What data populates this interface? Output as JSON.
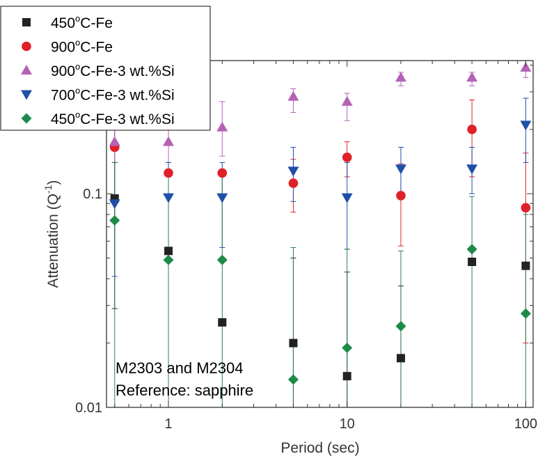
{
  "chart_data": {
    "type": "scatter",
    "xlabel": "Period (sec)",
    "ylabel_main": "Attenuation (Q",
    "ylabel_sup": "-1",
    "ylabel_end": ")",
    "xscale": "log",
    "yscale": "log",
    "xlim": [
      0.45,
      110
    ],
    "ylim": [
      0.01,
      0.42
    ],
    "x_ticks": [
      {
        "value": 1,
        "label": "1"
      },
      {
        "value": 10,
        "label": "10"
      },
      {
        "value": 100,
        "label": "100"
      }
    ],
    "y_ticks": [
      {
        "value": 0.01,
        "label": "0.01"
      },
      {
        "value": 0.1,
        "label": "0.1"
      }
    ],
    "legend_position": "top-left",
    "annotation_lines": [
      "M2303 and M2304",
      "Reference: sapphire"
    ],
    "series": [
      {
        "name_pre": "450",
        "name_sup": "o",
        "name_post": "C-Fe",
        "marker": "square",
        "color": "#222222",
        "error_color": "#222222",
        "points": [
          {
            "x": 0.5,
            "y": 0.095,
            "lo": 0.029,
            "hi": 0.21
          },
          {
            "x": 1,
            "y": 0.054
          },
          {
            "x": 2,
            "y": 0.025
          },
          {
            "x": 5,
            "y": 0.02,
            "lo": 0.01,
            "hi": 0.05
          },
          {
            "x": 10,
            "y": 0.014,
            "lo": 0.01,
            "hi": 0.043
          },
          {
            "x": 20,
            "y": 0.017,
            "lo": 0.01,
            "hi": 0.037
          },
          {
            "x": 50,
            "y": 0.048
          },
          {
            "x": 100,
            "y": 0.046
          }
        ]
      },
      {
        "name_pre": "900",
        "name_sup": "o",
        "name_post": "C-Fe",
        "marker": "circle",
        "color": "#e02028",
        "error_color": "#e02028",
        "points": [
          {
            "x": 0.5,
            "y": 0.165
          },
          {
            "x": 1,
            "y": 0.125
          },
          {
            "x": 2,
            "y": 0.125
          },
          {
            "x": 5,
            "y": 0.112,
            "lo": 0.082,
            "hi": 0.145
          },
          {
            "x": 10,
            "y": 0.148,
            "lo": 0.12,
            "hi": 0.175
          },
          {
            "x": 20,
            "y": 0.098,
            "lo": 0.057,
            "hi": 0.138
          },
          {
            "x": 50,
            "y": 0.2,
            "lo": 0.12,
            "hi": 0.275
          },
          {
            "x": 100,
            "y": 0.086,
            "lo": 0.02,
            "hi": 0.155
          }
        ]
      },
      {
        "name_pre": "900",
        "name_sup": "o",
        "name_post": "C-Fe-3 wt.%Si",
        "marker": "triangle-up",
        "color": "#b562b5",
        "error_color": "#b562b5",
        "points": [
          {
            "x": 0.5,
            "y": 0.175,
            "lo": 0.14,
            "hi": 0.205
          },
          {
            "x": 1,
            "y": 0.175,
            "lo": 0.14,
            "hi": 0.21
          },
          {
            "x": 2,
            "y": 0.205,
            "lo": 0.15,
            "hi": 0.27
          },
          {
            "x": 5,
            "y": 0.285,
            "lo": 0.24,
            "hi": 0.31
          },
          {
            "x": 10,
            "y": 0.27,
            "lo": 0.22,
            "hi": 0.295
          },
          {
            "x": 20,
            "y": 0.35,
            "lo": 0.32,
            "hi": 0.37
          },
          {
            "x": 50,
            "y": 0.35,
            "lo": 0.32,
            "hi": 0.37
          },
          {
            "x": 100,
            "y": 0.39,
            "lo": 0.35,
            "hi": 0.42
          }
        ]
      },
      {
        "name_pre": "700",
        "name_sup": "o",
        "name_post": "C-Fe-3 wt.%Si",
        "marker": "triangle-down",
        "color": "#1f4fa8",
        "error_color": "#1f4fa8",
        "points": [
          {
            "x": 0.5,
            "y": 0.09,
            "lo": 0.041,
            "hi": 0.14
          },
          {
            "x": 1,
            "y": 0.096,
            "lo": 0.055,
            "hi": 0.14
          },
          {
            "x": 2,
            "y": 0.096,
            "lo": 0.056,
            "hi": 0.14
          },
          {
            "x": 5,
            "y": 0.128,
            "lo": 0.092,
            "hi": 0.165
          },
          {
            "x": 10,
            "y": 0.096,
            "lo": 0.055,
            "hi": 0.14
          },
          {
            "x": 20,
            "y": 0.131,
            "lo": 0.1,
            "hi": 0.165
          },
          {
            "x": 50,
            "y": 0.131,
            "lo": 0.1,
            "hi": 0.165
          },
          {
            "x": 100,
            "y": 0.21,
            "lo": 0.14,
            "hi": 0.28
          }
        ]
      },
      {
        "name_pre": "450",
        "name_sup": "o",
        "name_post": "C-Fe-3 wt.%Si",
        "marker": "diamond",
        "color": "#1e8a4a",
        "error_color": "#2e7d4f",
        "points": [
          {
            "x": 0.5,
            "y": 0.075,
            "lo": 0.01,
            "hi": 0.14
          },
          {
            "x": 1,
            "y": 0.049,
            "lo": 0.01,
            "hi": 0.13
          },
          {
            "x": 2,
            "y": 0.049,
            "lo": 0.01,
            "hi": 0.13
          },
          {
            "x": 5,
            "y": 0.0135,
            "lo": 0.01,
            "hi": 0.056
          },
          {
            "x": 10,
            "y": 0.019,
            "lo": 0.01,
            "hi": 0.055
          },
          {
            "x": 20,
            "y": 0.024,
            "lo": 0.01,
            "hi": 0.054
          },
          {
            "x": 50,
            "y": 0.055,
            "lo": 0.01,
            "hi": 0.097
          },
          {
            "x": 100,
            "y": 0.0275,
            "lo": 0.01,
            "hi": 0.08
          }
        ]
      }
    ]
  }
}
